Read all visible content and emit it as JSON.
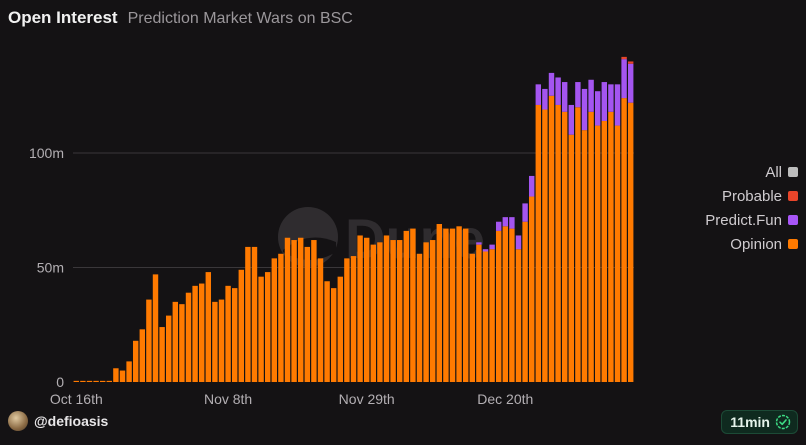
{
  "header": {
    "title": "Open Interest",
    "subtitle": "Prediction Market Wars on BSC"
  },
  "legend": {
    "items": [
      {
        "label": "All",
        "color": "#bdbdbd"
      },
      {
        "label": "Probable",
        "color": "#e8452a"
      },
      {
        "label": "Predict.Fun",
        "color": "#a855f7"
      },
      {
        "label": "Opinion",
        "color": "#ff7a00"
      }
    ]
  },
  "footer": {
    "handle": "@defioasis",
    "badge": "11min"
  },
  "colors": {
    "opinion": "#ff7a00",
    "predict_fun": "#a455f0",
    "probable": "#e8452a",
    "background": "#141214"
  },
  "watermark": "Dune",
  "chart_data": {
    "type": "bar",
    "stacked": true,
    "title": "Open Interest",
    "subtitle": "Prediction Market Wars on BSC",
    "xlabel": "",
    "ylabel": "",
    "ylim": [
      0,
      145
    ],
    "yunit": "m",
    "ytick_values": [
      0,
      50,
      100
    ],
    "ytick_labels": [
      "0",
      "50m",
      "100m"
    ],
    "x_start": "2025-10-16",
    "xtick_labels": [
      "Oct 16th",
      "Nov 8th",
      "Nov 29th",
      "Dec 20th"
    ],
    "xtick_dates": [
      "2025-10-16",
      "2025-11-08",
      "2025-11-29",
      "2025-12-20"
    ],
    "grid": true,
    "legend_position": "right",
    "series": [
      {
        "name": "Opinion",
        "values": [
          0.5,
          0.5,
          0.5,
          0.5,
          0.5,
          0.5,
          6,
          5,
          9,
          18,
          23,
          36,
          47,
          24,
          29,
          35,
          34,
          39,
          42,
          43,
          48,
          35,
          36,
          42,
          41,
          49,
          59,
          59,
          46,
          48,
          54,
          56,
          63,
          62,
          63,
          59,
          62,
          54,
          44,
          41,
          46,
          54,
          55,
          64,
          63,
          60,
          61,
          64,
          62,
          62,
          66,
          67,
          56,
          61,
          62,
          69,
          67,
          67,
          68,
          67,
          56,
          60,
          57,
          58,
          66,
          68,
          67,
          58,
          70,
          81,
          121,
          119,
          125,
          121,
          118,
          108,
          120,
          110,
          118,
          112,
          114,
          118,
          112,
          124,
          122
        ]
      },
      {
        "name": "Predict.Fun",
        "values": [
          0,
          0,
          0,
          0,
          0,
          0,
          0,
          0,
          0,
          0,
          0,
          0,
          0,
          0,
          0,
          0,
          0,
          0,
          0,
          0,
          0,
          0,
          0,
          0,
          0,
          0,
          0,
          0,
          0,
          0,
          0,
          0,
          0,
          0,
          0,
          0,
          0,
          0,
          0,
          0,
          0,
          0,
          0,
          0,
          0,
          0,
          0,
          0,
          0,
          0,
          0,
          0,
          0,
          0,
          0,
          0,
          0,
          0,
          0,
          0,
          0,
          1,
          1,
          2,
          4,
          4,
          5,
          6,
          8,
          9,
          9,
          9,
          10,
          12,
          13,
          13,
          11,
          18,
          14,
          15,
          17,
          12,
          18,
          17,
          17
        ]
      },
      {
        "name": "Probable",
        "values": [
          0,
          0,
          0,
          0,
          0,
          0,
          0,
          0,
          0,
          0,
          0,
          0,
          0,
          0,
          0,
          0,
          0,
          0,
          0,
          0,
          0,
          0,
          0,
          0,
          0,
          0,
          0,
          0,
          0,
          0,
          0,
          0,
          0,
          0,
          0,
          0,
          0,
          0,
          0,
          0,
          0,
          0,
          0,
          0,
          0,
          0,
          0,
          0,
          0,
          0,
          0,
          0,
          0,
          0,
          0,
          0,
          0,
          0,
          0,
          0,
          0,
          0,
          0,
          0,
          0,
          0,
          0,
          0,
          0,
          0,
          0,
          0,
          0,
          0,
          0,
          0,
          0,
          0,
          0,
          0,
          0,
          0,
          0,
          1,
          1
        ]
      }
    ]
  }
}
